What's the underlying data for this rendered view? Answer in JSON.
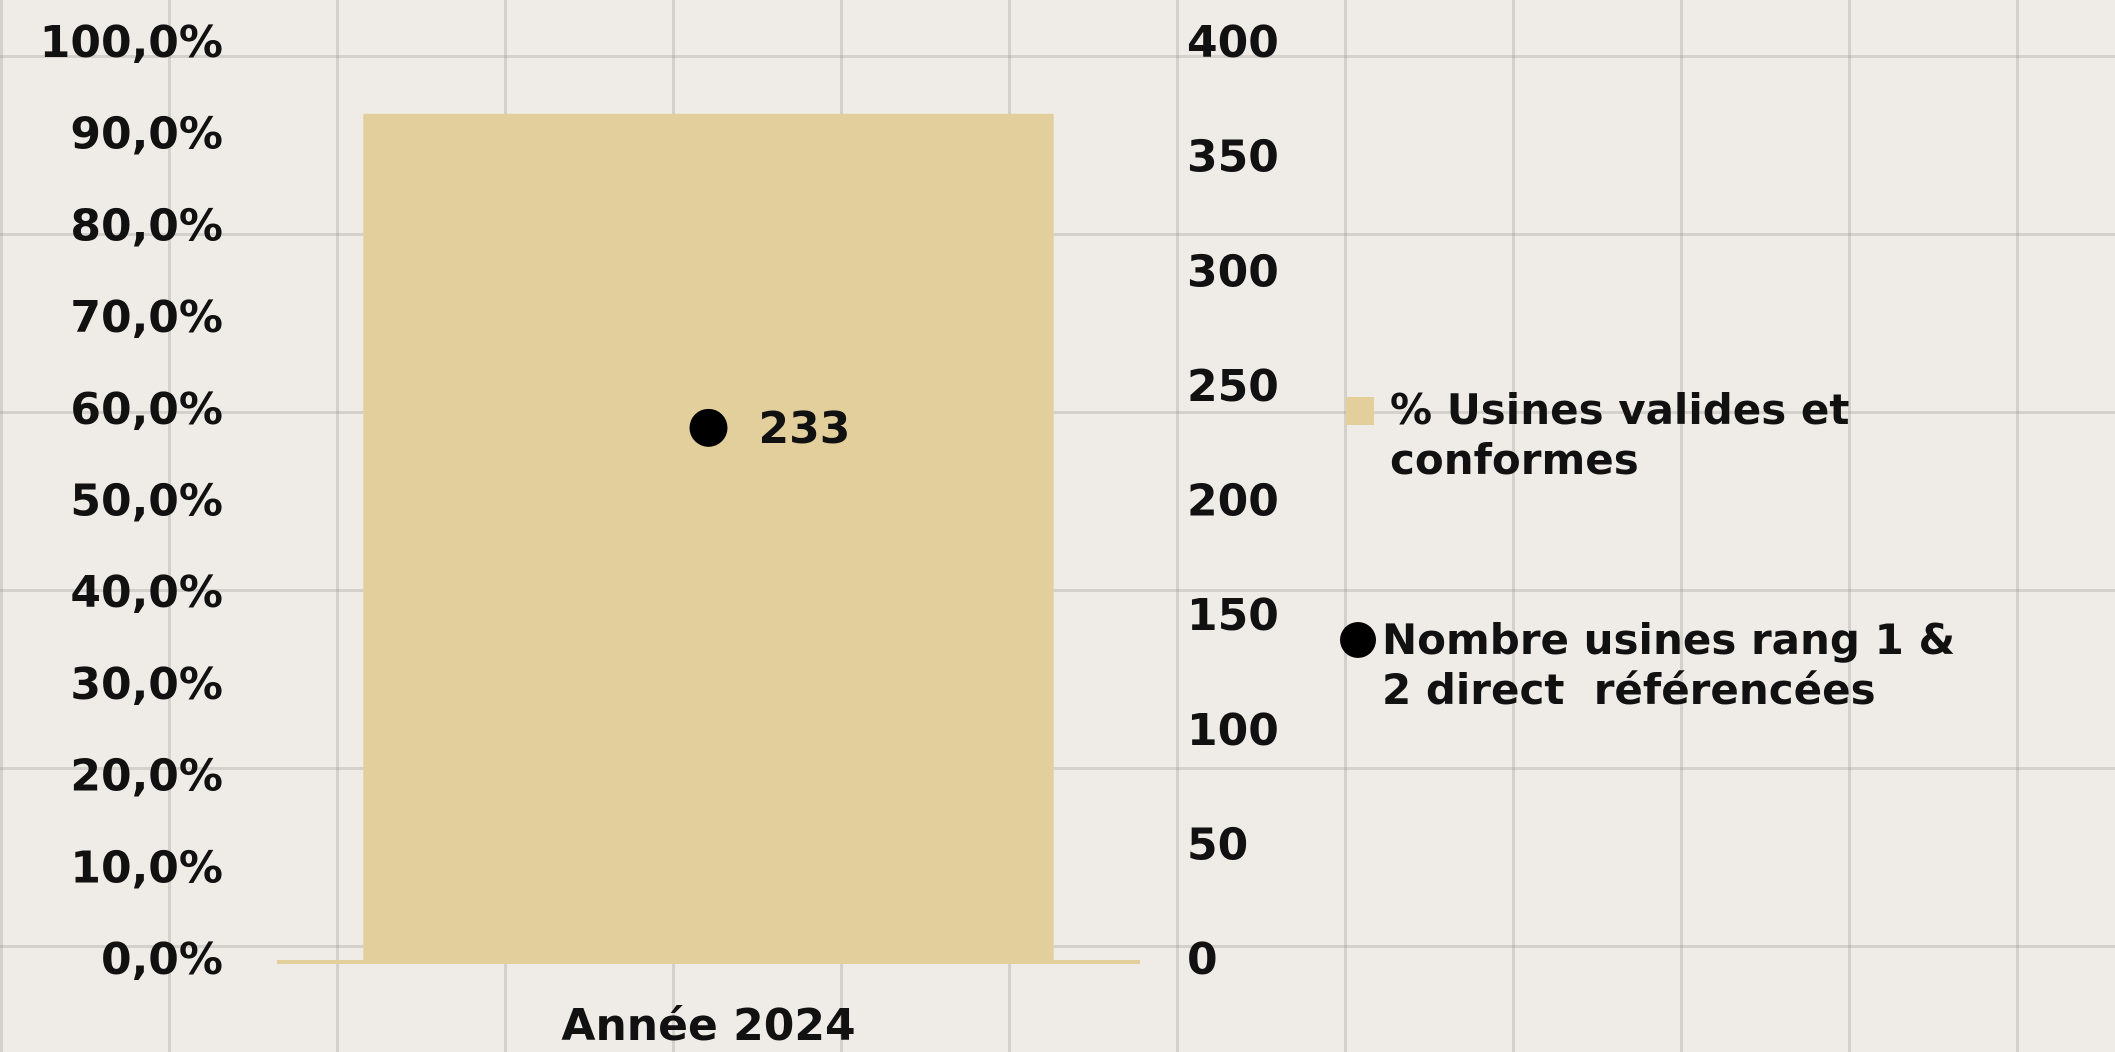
{
  "chart_data": {
    "type": "bar",
    "categories": [
      "Année 2024"
    ],
    "series": [
      {
        "name": "% Usines valides et conformes",
        "color": "#e3cf9c",
        "values": [
          92.5
        ],
        "type": "bar"
      },
      {
        "name": "Nombre usines rang 1 & 2 direct  référencées",
        "color": "#000000",
        "values": [
          233
        ],
        "type": "scatter",
        "axis": "y2"
      }
    ],
    "ylim": [
      0,
      100
    ],
    "yticks": [
      {
        "value": 0,
        "label": "0,0%"
      },
      {
        "value": 10,
        "label": "10,0%"
      },
      {
        "value": 20,
        "label": "20,0%"
      },
      {
        "value": 30,
        "label": "30,0%"
      },
      {
        "value": 40,
        "label": "40,0%"
      },
      {
        "value": 50,
        "label": "50,0%"
      },
      {
        "value": 60,
        "label": "60,0%"
      },
      {
        "value": 70,
        "label": "70,0%"
      },
      {
        "value": 80,
        "label": "80,0%"
      },
      {
        "value": 90,
        "label": "90,0%"
      },
      {
        "value": 100,
        "label": "100,0%"
      }
    ],
    "y2lim": [
      0,
      400
    ],
    "y2ticks": [
      0,
      50,
      100,
      150,
      200,
      250,
      300,
      350,
      400
    ],
    "legend": "right"
  }
}
